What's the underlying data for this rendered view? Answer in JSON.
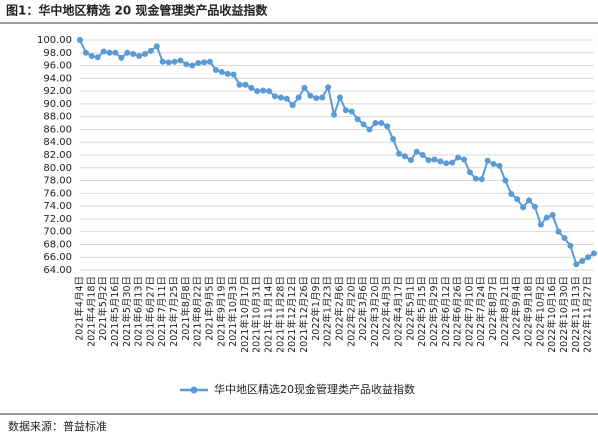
{
  "chart_data": {
    "type": "line",
    "title": "图1：华中地区精选 20 现金管理类产品收益指数",
    "source": "数据来源：普益标准",
    "categories": [
      "2021年4月4日",
      null,
      "2021年4月18日",
      null,
      "2021年5月2日",
      null,
      "2021年5月16日",
      null,
      "2021年5月30日",
      null,
      "2021年6月13日",
      null,
      "2021年6月27日",
      null,
      "2021年7月11日",
      null,
      "2021年7月25日",
      null,
      "2021年8月8日",
      null,
      "2021年8月22日",
      null,
      "2021年9月5日",
      null,
      "2021年9月19日",
      null,
      "2021年10月3日",
      null,
      "2021年10月17日",
      null,
      "2021年10月31日",
      null,
      "2021年11月14日",
      null,
      "2021年11月28日",
      null,
      "2021年12月12日",
      null,
      "2021年12月26日",
      null,
      "2022年1月9日",
      null,
      "2022年1月23日",
      null,
      "2022年2月6日",
      null,
      "2022年2月20日",
      null,
      "2022年3月6日",
      null,
      "2022年3月20日",
      null,
      "2022年4月3日",
      null,
      "2022年4月17日",
      null,
      "2022年5月1日",
      null,
      "2022年5月15日",
      null,
      "2022年5月29日",
      null,
      "2022年6月12日",
      null,
      "2022年6月26日",
      null,
      "2022年7月10日",
      null,
      "2022年7月24日",
      null,
      "2022年8月7日",
      null,
      "2022年8月21日",
      null,
      "2022年9月4日",
      null,
      "2022年9月18日",
      null,
      "2022年10月2日",
      null,
      "2022年10月16日",
      null,
      "2022年10月30日",
      null,
      "2022年11月13日",
      null,
      "2022年11月27日",
      null
    ],
    "series": [
      {
        "name": "华中地区精选20现金管理类产品收益指数",
        "color": "#5b9bd5",
        "values": [
          100.0,
          98.0,
          97.5,
          97.3,
          98.2,
          98.0,
          98.0,
          97.2,
          98.0,
          97.8,
          97.5,
          97.8,
          98.3,
          99.0,
          96.6,
          96.5,
          96.6,
          96.8,
          96.2,
          96.0,
          96.4,
          96.5,
          96.6,
          95.3,
          95.0,
          94.7,
          94.6,
          93.0,
          93.0,
          92.5,
          92.0,
          92.1,
          92.0,
          91.2,
          91.0,
          90.8,
          89.8,
          91.0,
          92.5,
          91.3,
          90.9,
          91.0,
          92.6,
          88.3,
          91.0,
          89.0,
          88.8,
          87.6,
          86.8,
          86.0,
          87.0,
          87.0,
          86.5,
          84.5,
          82.2,
          81.8,
          81.2,
          82.5,
          82.0,
          81.2,
          81.3,
          81.0,
          80.7,
          80.8,
          81.6,
          81.3,
          79.3,
          78.3,
          78.2,
          81.1,
          80.6,
          80.3,
          78.0,
          75.9,
          75.1,
          73.8,
          74.9,
          73.9,
          71.1,
          72.2,
          72.6,
          70.0,
          69.0,
          67.8,
          64.9,
          65.4,
          66.0,
          66.6
        ]
      }
    ],
    "ylim": [
      64,
      100
    ],
    "yticks": [
      {
        "value": 64,
        "label": "64.00"
      },
      {
        "value": 66,
        "label": "66.00"
      },
      {
        "value": 68,
        "label": "68.00"
      },
      {
        "value": 70,
        "label": "70.00"
      },
      {
        "value": 72,
        "label": "72.00"
      },
      {
        "value": 74,
        "label": "74.00"
      },
      {
        "value": 76,
        "label": "76.00"
      },
      {
        "value": 78,
        "label": "78.00"
      },
      {
        "value": 80,
        "label": "80.00"
      },
      {
        "value": 82,
        "label": "82.00"
      },
      {
        "value": 84,
        "label": "84.00"
      },
      {
        "value": 86,
        "label": "86.00"
      },
      {
        "value": 88,
        "label": "88.00"
      },
      {
        "value": 90,
        "label": "90.00"
      },
      {
        "value": 92,
        "label": "92.00"
      },
      {
        "value": 94,
        "label": "94.00"
      },
      {
        "value": 96,
        "label": "96.00"
      },
      {
        "value": 98,
        "label": "98.00"
      },
      {
        "value": 100,
        "label": "100.00"
      }
    ],
    "grid": true,
    "legend": "bottom"
  }
}
